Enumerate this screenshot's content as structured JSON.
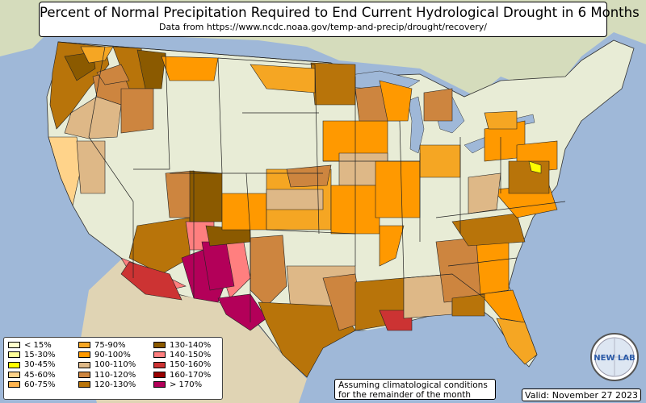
{
  "title": "Percent of Normal Precipitation Required to End Current Hydrological Drought in 6 Months",
  "subtitle": "Data from https://www.ncdc.noaa.gov/temp-and-precip/drought/recovery/",
  "legend": {
    "items": [
      {
        "label": "< 15%",
        "color": "#ffffcc"
      },
      {
        "label": "15-30%",
        "color": "#ffff99"
      },
      {
        "label": "30-45%",
        "color": "#ffff00"
      },
      {
        "label": "45-60%",
        "color": "#ffd38a"
      },
      {
        "label": "60-75%",
        "color": "#ffb450"
      },
      {
        "label": "75-90%",
        "color": "#f5a623"
      },
      {
        "label": "90-100%",
        "color": "#ff9900"
      },
      {
        "label": "100-110%",
        "color": "#deb887"
      },
      {
        "label": "110-120%",
        "color": "#cd853f"
      },
      {
        "label": "120-130%",
        "color": "#b8740a"
      },
      {
        "label": "130-140%",
        "color": "#8b5a00"
      },
      {
        "label": "140-150%",
        "color": "#ff7f7f"
      },
      {
        "label": "150-160%",
        "color": "#cc3333"
      },
      {
        "label": "160-170%",
        "color": "#990000"
      },
      {
        "label": "> 170%",
        "color": "#b30059"
      }
    ]
  },
  "note": "Assuming climatological conditions for the remainder of the month",
  "valid": "Valid: November 27 2023",
  "logo_text": "NEW LAB",
  "colors": {
    "ocean": "#9fb8d8",
    "land": "#e8ecd6",
    "canada": "#d5dcbc",
    "mexico": "#e0d4b4"
  }
}
